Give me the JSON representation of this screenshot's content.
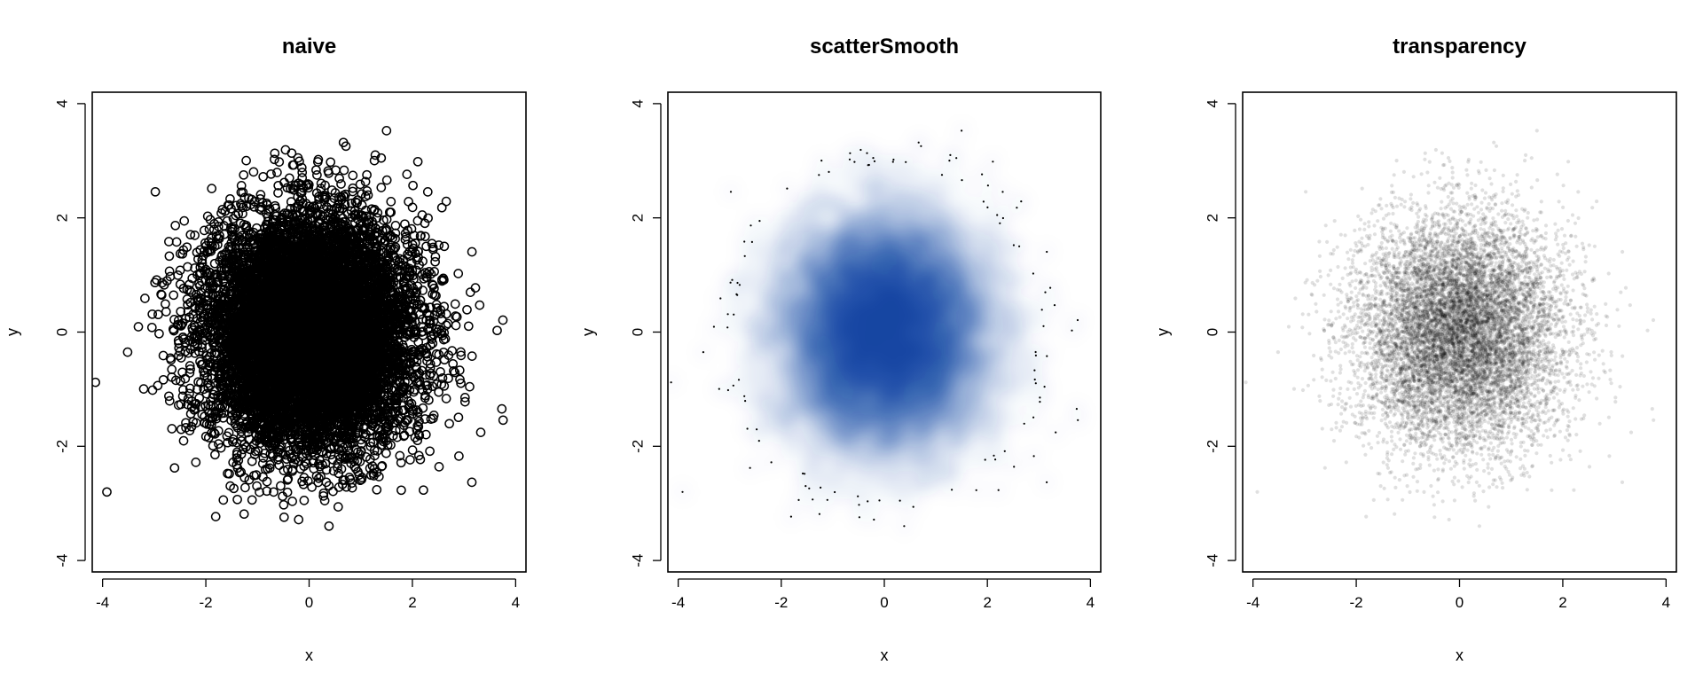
{
  "chart_data": [
    {
      "type": "scatter",
      "title": "naive",
      "xlabel": "x",
      "ylabel": "y",
      "xlim": [
        -4.2,
        4.2
      ],
      "ylim": [
        -4.2,
        4.2
      ],
      "xticks": [
        -4,
        -2,
        0,
        2,
        4
      ],
      "yticks": [
        -4,
        -2,
        0,
        2,
        4
      ],
      "marker": "open-circle",
      "color": "#000000",
      "n_points": 10000,
      "distribution": {
        "x_mean": 0,
        "x_sd": 1,
        "y_mean": 0,
        "y_sd": 1
      }
    },
    {
      "type": "scatter",
      "title": "scatterSmooth",
      "xlabel": "x",
      "ylabel": "y",
      "xlim": [
        -4.2,
        4.2
      ],
      "ylim": [
        -4.2,
        4.2
      ],
      "xticks": [
        -4,
        -2,
        0,
        2,
        4
      ],
      "yticks": [
        -4,
        -2,
        0,
        2,
        4
      ],
      "marker": "smoothed-density",
      "color": "#08519c",
      "n_points": 10000,
      "distribution": {
        "x_mean": 0,
        "x_sd": 1,
        "y_mean": 0,
        "y_sd": 1
      }
    },
    {
      "type": "scatter",
      "title": "transparency",
      "xlabel": "x",
      "ylabel": "y",
      "xlim": [
        -4.2,
        4.2
      ],
      "ylim": [
        -4.2,
        4.2
      ],
      "xticks": [
        -4,
        -2,
        0,
        2,
        4
      ],
      "yticks": [
        -4,
        -2,
        0,
        2,
        4
      ],
      "marker": "translucent-dot",
      "color": "#000000",
      "alpha": 0.12,
      "n_points": 10000,
      "distribution": {
        "x_mean": 0,
        "x_sd": 1,
        "y_mean": 0,
        "y_sd": 1
      }
    }
  ]
}
